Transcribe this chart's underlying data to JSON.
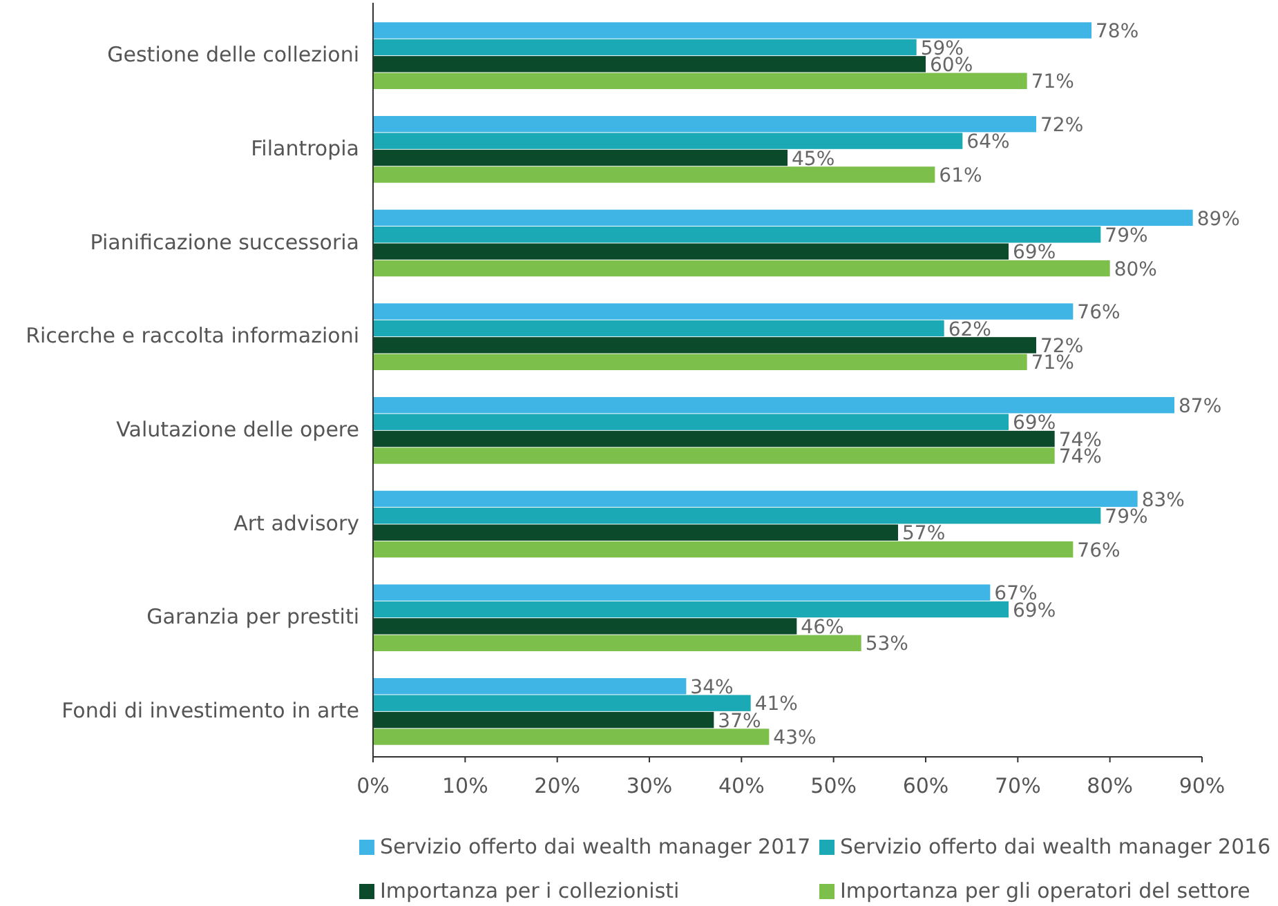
{
  "chart_data": {
    "type": "bar",
    "orientation": "horizontal",
    "categories": [
      "Gestione delle collezioni",
      "Filantropia",
      "Pianificazione successoria",
      "Ricerche e raccolta informazioni",
      "Valutazione delle opere",
      "Art advisory",
      "Garanzia per prestiti",
      "Fondi di investimento in arte"
    ],
    "series": [
      {
        "name": "Servizio offerto dai wealth manager 2017",
        "color": "#3fb5e5",
        "values": [
          78,
          72,
          89,
          76,
          87,
          83,
          67,
          34
        ],
        "value_labels": [
          "78%",
          "72%",
          "89%",
          "76%",
          "87%",
          "83%",
          "67%",
          "34%"
        ]
      },
      {
        "name": "Servizio offerto dai wealth manager 2016",
        "color": "#1ba9b5",
        "values": [
          59,
          64,
          79,
          62,
          69,
          79,
          69,
          41
        ],
        "value_labels": [
          "59%",
          "64%",
          "79%",
          "62%",
          "69%",
          "79%",
          "69%",
          "41%"
        ]
      },
      {
        "name": "Importanza per i collezionisti",
        "color": "#0b4a2a",
        "values": [
          60,
          45,
          69,
          72,
          74,
          57,
          46,
          37
        ],
        "value_labels": [
          "60%",
          "45%",
          "69%",
          "72%",
          "74%",
          "57%",
          "46%",
          "37%"
        ]
      },
      {
        "name": "Importanza per gli operatori del settore",
        "color": "#7cc04b",
        "values": [
          71,
          61,
          80,
          71,
          74,
          76,
          53,
          43
        ],
        "value_labels": [
          "71%",
          "61%",
          "80%",
          "71%",
          "74%",
          "76%",
          "53%",
          "43%"
        ]
      }
    ],
    "xlim": [
      0,
      90
    ],
    "xticks": [
      {
        "value": 0,
        "label": "0%"
      },
      {
        "value": 10,
        "label": "10%"
      },
      {
        "value": 20,
        "label": "20%"
      },
      {
        "value": 30,
        "label": "30%"
      },
      {
        "value": 40,
        "label": "40%"
      },
      {
        "value": 50,
        "label": "50%"
      },
      {
        "value": 60,
        "label": "60%"
      },
      {
        "value": 70,
        "label": "70%"
      },
      {
        "value": 80,
        "label": "80%"
      },
      {
        "value": 90,
        "label": "90%"
      }
    ],
    "grid": false,
    "legend": "bottom"
  }
}
